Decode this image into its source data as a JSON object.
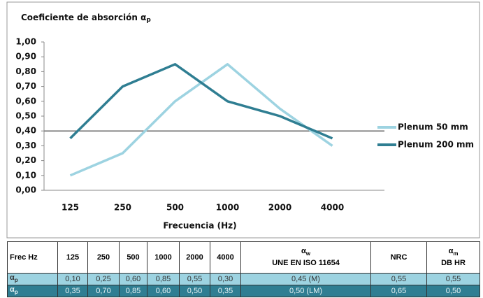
{
  "chart_data": {
    "type": "line",
    "title": "Coeficiente de absorción α",
    "title_subscript": "p",
    "x_label": "Frecuencia (Hz)",
    "categories": [
      "125",
      "250",
      "500",
      "1000",
      "2000",
      "4000"
    ],
    "series": [
      {
        "name": "Plenum 50 mm",
        "color": "#9dd3e1",
        "values": [
          0.1,
          0.25,
          0.6,
          0.85,
          0.55,
          0.3
        ]
      },
      {
        "name": "Plenum 200 mm",
        "color": "#2f7e92",
        "values": [
          0.35,
          0.7,
          0.85,
          0.6,
          0.5,
          0.35
        ]
      }
    ],
    "ylim": [
      0,
      1
    ],
    "yticks": [
      {
        "value": 0,
        "label": "0,00"
      },
      {
        "value": 0.1,
        "label": "0,10"
      },
      {
        "value": 0.2,
        "label": "0,20"
      },
      {
        "value": 0.3,
        "label": "0,30"
      },
      {
        "value": 0.4,
        "label": "0,40"
      },
      {
        "value": 0.5,
        "label": "0,50"
      },
      {
        "value": 0.6,
        "label": "0,60"
      },
      {
        "value": 0.7,
        "label": "0,70"
      },
      {
        "value": 0.8,
        "label": "0,80"
      },
      {
        "value": 0.9,
        "label": "0,90"
      },
      {
        "value": 1,
        "label": "1,00"
      }
    ],
    "grid_lines": [
      0.4
    ],
    "legend": "right"
  },
  "table": {
    "header": [
      {
        "main": "Frec Hz"
      },
      {
        "main": "125"
      },
      {
        "main": "250"
      },
      {
        "main": "500"
      },
      {
        "main": "1000"
      },
      {
        "main": "2000"
      },
      {
        "main": "4000"
      },
      {
        "main": "α",
        "sub": "w",
        "line2": "UNE EN ISO 11654"
      },
      {
        "main": "NRC"
      },
      {
        "main": "α",
        "sub": "m",
        "line2": "DB HR"
      }
    ],
    "rows": [
      [
        {
          "main": "α",
          "sub": "p"
        },
        {
          "main": "0,10"
        },
        {
          "main": "0,25"
        },
        {
          "main": "0,60"
        },
        {
          "main": "0,85"
        },
        {
          "main": "0,55"
        },
        {
          "main": "0,30"
        },
        {
          "main": "0,45 (M)"
        },
        {
          "main": "0,55"
        },
        {
          "main": "0,55"
        }
      ],
      [
        {
          "main": "α",
          "sub": "p"
        },
        {
          "main": "0,35"
        },
        {
          "main": "0,70"
        },
        {
          "main": "0,85"
        },
        {
          "main": "0,60"
        },
        {
          "main": "0,50"
        },
        {
          "main": "0,35"
        },
        {
          "main": "0,50 (LM)"
        },
        {
          "main": "0,65"
        },
        {
          "main": "0,50"
        }
      ]
    ]
  }
}
